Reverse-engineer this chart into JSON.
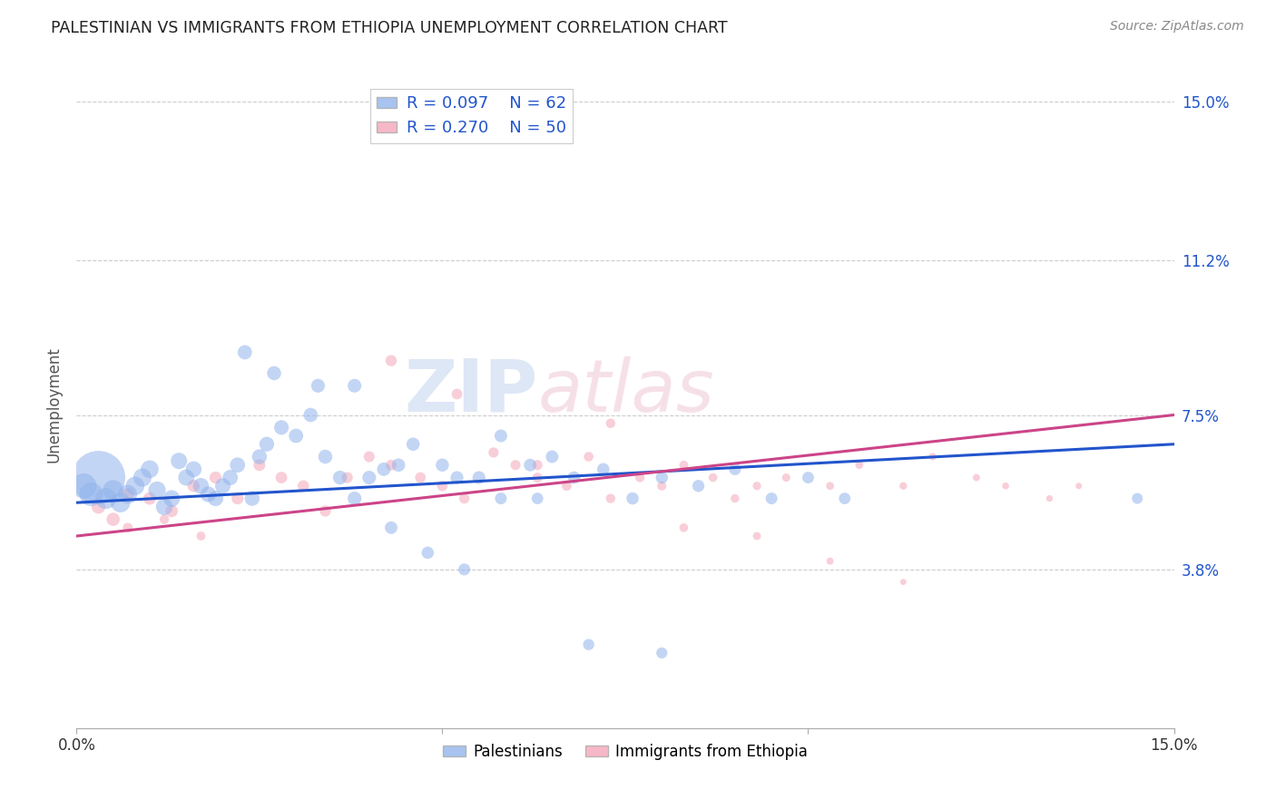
{
  "title": "PALESTINIAN VS IMMIGRANTS FROM ETHIOPIA UNEMPLOYMENT CORRELATION CHART",
  "source": "Source: ZipAtlas.com",
  "ylabel": "Unemployment",
  "y_ticks": [
    0.0,
    0.038,
    0.075,
    0.112,
    0.15
  ],
  "y_tick_labels": [
    "",
    "3.8%",
    "7.5%",
    "11.2%",
    "15.0%"
  ],
  "x_range": [
    0.0,
    0.15
  ],
  "y_range": [
    0.0,
    0.155
  ],
  "legend1_r": "R = 0.097",
  "legend1_n": "N = 62",
  "legend2_r": "R = 0.270",
  "legend2_n": "N = 50",
  "blue_color": "#92B4EC",
  "pink_color": "#F4A7B9",
  "line_blue": "#2255CC",
  "line_pink": "#CC4488",
  "watermark_zip": "ZIP",
  "watermark_atlas": "atlas",
  "palestinians_x": [
    0.001,
    0.002,
    0.003,
    0.004,
    0.005,
    0.006,
    0.007,
    0.008,
    0.009,
    0.01,
    0.011,
    0.012,
    0.013,
    0.014,
    0.015,
    0.016,
    0.017,
    0.018,
    0.019,
    0.02,
    0.021,
    0.022,
    0.024,
    0.025,
    0.026,
    0.028,
    0.03,
    0.032,
    0.034,
    0.036,
    0.038,
    0.04,
    0.042,
    0.044,
    0.046,
    0.05,
    0.052,
    0.055,
    0.058,
    0.062,
    0.065,
    0.068,
    0.072,
    0.076,
    0.08,
    0.085,
    0.09,
    0.095,
    0.1,
    0.105,
    0.023,
    0.027,
    0.033,
    0.038,
    0.043,
    0.048,
    0.053,
    0.058,
    0.063,
    0.07,
    0.08,
    0.145
  ],
  "palestinians_y": [
    0.058,
    0.056,
    0.06,
    0.055,
    0.057,
    0.054,
    0.056,
    0.058,
    0.06,
    0.062,
    0.057,
    0.053,
    0.055,
    0.064,
    0.06,
    0.062,
    0.058,
    0.056,
    0.055,
    0.058,
    0.06,
    0.063,
    0.055,
    0.065,
    0.068,
    0.072,
    0.07,
    0.075,
    0.065,
    0.06,
    0.055,
    0.06,
    0.062,
    0.063,
    0.068,
    0.063,
    0.06,
    0.06,
    0.07,
    0.063,
    0.065,
    0.06,
    0.062,
    0.055,
    0.06,
    0.058,
    0.062,
    0.055,
    0.06,
    0.055,
    0.09,
    0.085,
    0.082,
    0.082,
    0.048,
    0.042,
    0.038,
    0.055,
    0.055,
    0.02,
    0.018,
    0.055
  ],
  "palestinians_size": [
    400,
    350,
    1800,
    280,
    260,
    240,
    220,
    220,
    210,
    200,
    190,
    180,
    175,
    170,
    165,
    160,
    160,
    155,
    150,
    150,
    148,
    145,
    140,
    140,
    138,
    135,
    130,
    128,
    125,
    122,
    120,
    118,
    115,
    112,
    110,
    108,
    105,
    105,
    102,
    100,
    100,
    98,
    96,
    95,
    94,
    92,
    90,
    88,
    86,
    85,
    130,
    125,
    120,
    118,
    100,
    95,
    90,
    88,
    85,
    80,
    78,
    75
  ],
  "ethiopia_x": [
    0.003,
    0.005,
    0.007,
    0.01,
    0.013,
    0.016,
    0.019,
    0.022,
    0.025,
    0.028,
    0.031,
    0.034,
    0.037,
    0.04,
    0.043,
    0.047,
    0.05,
    0.053,
    0.057,
    0.06,
    0.063,
    0.067,
    0.07,
    0.073,
    0.077,
    0.08,
    0.083,
    0.087,
    0.09,
    0.093,
    0.097,
    0.103,
    0.107,
    0.113,
    0.117,
    0.123,
    0.127,
    0.133,
    0.137,
    0.043,
    0.052,
    0.063,
    0.073,
    0.083,
    0.093,
    0.103,
    0.113,
    0.007,
    0.012,
    0.017
  ],
  "ethiopia_y": [
    0.053,
    0.05,
    0.056,
    0.055,
    0.052,
    0.058,
    0.06,
    0.055,
    0.063,
    0.06,
    0.058,
    0.052,
    0.06,
    0.065,
    0.063,
    0.06,
    0.058,
    0.055,
    0.066,
    0.063,
    0.06,
    0.058,
    0.065,
    0.073,
    0.06,
    0.058,
    0.063,
    0.06,
    0.055,
    0.058,
    0.06,
    0.058,
    0.063,
    0.058,
    0.065,
    0.06,
    0.058,
    0.055,
    0.058,
    0.088,
    0.08,
    0.063,
    0.055,
    0.048,
    0.046,
    0.04,
    0.035,
    0.048,
    0.05,
    0.046
  ],
  "ethiopia_size": [
    120,
    110,
    105,
    100,
    98,
    95,
    92,
    90,
    88,
    85,
    82,
    80,
    78,
    76,
    74,
    72,
    70,
    68,
    66,
    64,
    62,
    60,
    58,
    56,
    54,
    52,
    50,
    48,
    46,
    44,
    42,
    40,
    38,
    36,
    34,
    32,
    30,
    28,
    26,
    80,
    72,
    64,
    56,
    48,
    40,
    32,
    24,
    60,
    55,
    50
  ],
  "pal_line_x0": 0.0,
  "pal_line_y0": 0.054,
  "pal_line_x1": 0.15,
  "pal_line_y1": 0.068,
  "eth_line_x0": 0.0,
  "eth_line_y0": 0.046,
  "eth_line_x1": 0.15,
  "eth_line_y1": 0.075
}
